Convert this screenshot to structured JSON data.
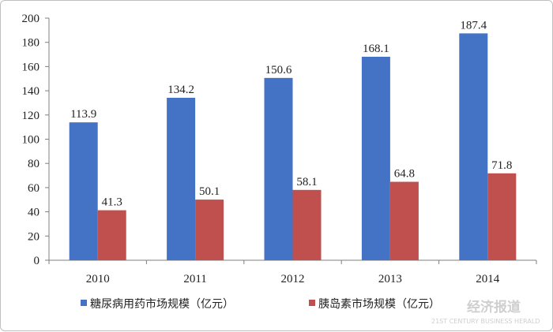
{
  "chart_data": {
    "type": "bar",
    "categories": [
      "2010",
      "2011",
      "2012",
      "2013",
      "2014"
    ],
    "series": [
      {
        "name": "糖尿病用药市场规模（亿元）",
        "values": [
          113.9,
          134.2,
          150.6,
          168.1,
          187.4
        ],
        "color": "#4472c4"
      },
      {
        "name": "胰岛素市场规模（亿元）",
        "values": [
          41.3,
          50.1,
          58.1,
          64.8,
          71.8
        ],
        "color": "#c0504d"
      }
    ],
    "data_labels": {
      "s0": [
        "113.9",
        "134.2",
        "150.6",
        "168.1",
        "187.4"
      ],
      "s1": [
        "41.3",
        "50.1",
        "58.1",
        "64.8",
        "71.8"
      ]
    },
    "ylim": [
      0,
      200
    ],
    "yticks": [
      "0",
      "20",
      "40",
      "60",
      "80",
      "100",
      "120",
      "140",
      "160",
      "180",
      "200"
    ],
    "grid": false,
    "legend_position": "bottom"
  },
  "watermark": {
    "line1": "经济报道",
    "line2": "21ST CENTURY BUSINESS HERALD"
  }
}
